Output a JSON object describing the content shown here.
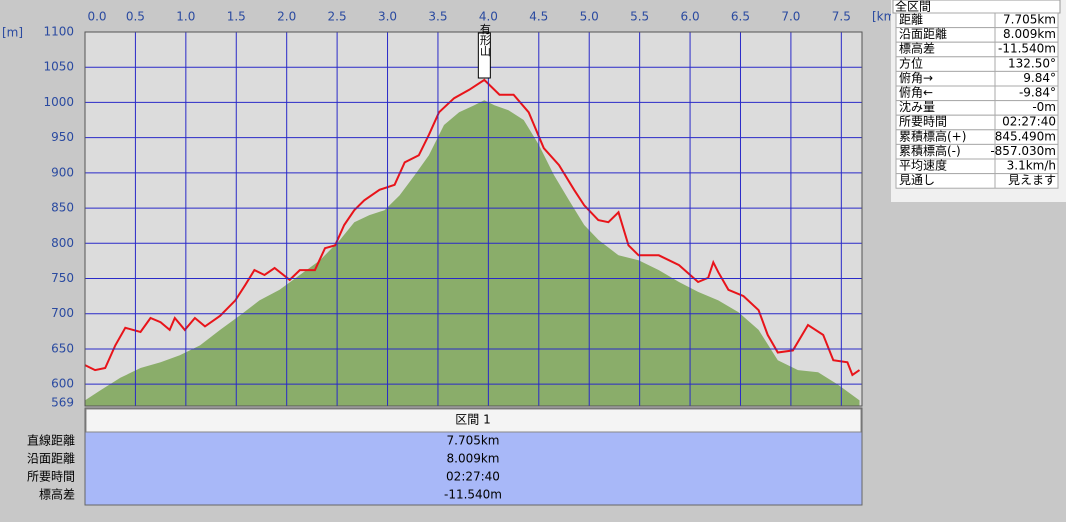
{
  "chart_data": {
    "type": "area",
    "x_unit": "[km]",
    "y_unit": "[m]",
    "annotation": "有形山",
    "xlim": [
      0,
      7.705
    ],
    "ylim": [
      569,
      1100
    ],
    "xticks": [
      {
        "value": 0,
        "label": "0.0"
      },
      0.5,
      {
        "value": 1,
        "label": "1.0"
      },
      1.5,
      {
        "value": 2,
        "label": "2.0"
      },
      2.5,
      {
        "value": 3,
        "label": "3.0"
      },
      3.5,
      {
        "value": 4,
        "label": "4.0"
      },
      4.5,
      {
        "value": 5,
        "label": "5.0"
      },
      5.5,
      {
        "value": 6,
        "label": "6.0"
      },
      6.5,
      {
        "value": 7,
        "label": "7.0"
      },
      7.5
    ],
    "yticks": [
      569,
      600,
      650,
      700,
      750,
      800,
      850,
      900,
      950,
      1000,
      1050,
      1100
    ],
    "grid": true,
    "series": [
      {
        "color": "#8aad6a",
        "fill": true,
        "x": [
          0,
          0.15,
          0.35,
          0.55,
          0.75,
          0.94,
          1.14,
          1.34,
          1.54,
          1.73,
          1.93,
          2.13,
          2.33,
          2.53,
          2.67,
          2.82,
          2.97,
          3.12,
          3.27,
          3.41,
          3.56,
          3.71,
          3.86,
          3.96,
          4.06,
          4.2,
          4.35,
          4.5,
          4.65,
          4.8,
          4.95,
          5.09,
          5.29,
          5.49,
          5.69,
          5.89,
          6.08,
          6.28,
          6.48,
          6.68,
          6.87,
          7.07,
          7.27,
          7.47,
          7.68
        ],
        "values": [
          577,
          591,
          609,
          623,
          631,
          641,
          655,
          677,
          698,
          719,
          734,
          755,
          776,
          805,
          830,
          840,
          847,
          868,
          897,
          925,
          968,
          986,
          996,
          1003,
          996,
          989,
          975,
          940,
          897,
          861,
          826,
          805,
          783,
          776,
          762,
          745,
          731,
          719,
          702,
          677,
          634,
          620,
          617,
          599,
          577
        ]
      },
      {
        "color": "#e8141a",
        "fill": false,
        "x": [
          0,
          0.1,
          0.2,
          0.3,
          0.4,
          0.55,
          0.65,
          0.75,
          0.84,
          0.89,
          0.99,
          1.09,
          1.19,
          1.34,
          1.49,
          1.59,
          1.68,
          1.78,
          1.88,
          2.03,
          2.13,
          2.28,
          2.38,
          2.48,
          2.57,
          2.67,
          2.77,
          2.92,
          3.07,
          3.17,
          3.31,
          3.41,
          3.51,
          3.66,
          3.81,
          3.96,
          4.11,
          4.25,
          4.4,
          4.55,
          4.7,
          4.85,
          4.95,
          5.09,
          5.19,
          5.29,
          5.39,
          5.49,
          5.69,
          5.89,
          6.08,
          6.18,
          6.23,
          6.28,
          6.38,
          6.53,
          6.68,
          6.77,
          6.87,
          7.02,
          7.17,
          7.32,
          7.42,
          7.56,
          7.61,
          7.68
        ],
        "values": [
          627,
          620,
          623,
          655,
          680,
          674,
          694,
          688,
          677,
          694,
          677,
          694,
          682,
          697,
          719,
          741,
          762,
          755,
          765,
          748,
          762,
          762,
          793,
          797,
          826,
          847,
          861,
          876,
          883,
          915,
          925,
          954,
          986,
          1006,
          1018,
          1032,
          1011,
          1011,
          986,
          935,
          911,
          876,
          854,
          833,
          830,
          844,
          797,
          783,
          783,
          769,
          745,
          751,
          773,
          759,
          734,
          725,
          705,
          670,
          645,
          648,
          684,
          670,
          634,
          631,
          613,
          620
        ]
      }
    ]
  },
  "summary": {
    "title": "全区間",
    "rows": [
      [
        "距離",
        "7.705km"
      ],
      [
        "沿面距離",
        "8.009km"
      ],
      [
        "標高差",
        "-11.540m"
      ],
      [
        "方位",
        "132.50°"
      ],
      [
        "俯角→",
        "9.84°"
      ],
      [
        "俯角←",
        "-9.84°"
      ],
      [
        "沈み量",
        "-0m"
      ],
      [
        "所要時間",
        "02:27:40"
      ],
      [
        "累積標高(+)",
        "845.490m"
      ],
      [
        "累積標高(-)",
        "-857.030m"
      ],
      [
        "平均速度",
        "3.1km/h"
      ],
      [
        "見通し",
        "見えます"
      ]
    ]
  },
  "section": {
    "title": "区間 1",
    "rows": [
      [
        "直線距離",
        "7.705km"
      ],
      [
        "沿面距離",
        "8.009km"
      ],
      [
        "所要時間",
        "02:27:40"
      ],
      [
        "標高差",
        "-11.540m"
      ]
    ]
  }
}
